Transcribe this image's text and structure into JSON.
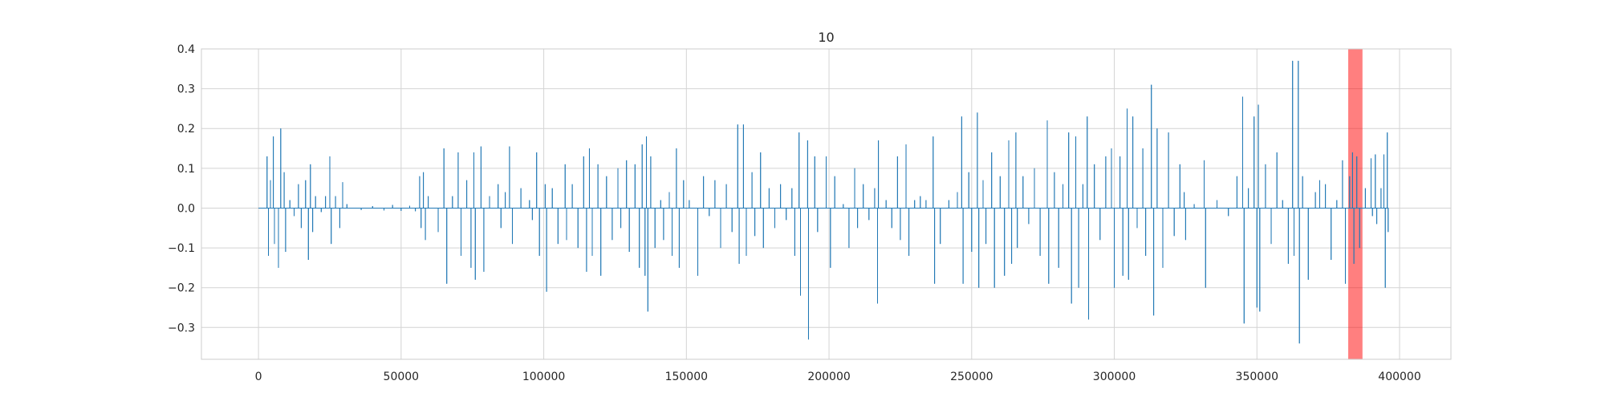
{
  "chart_data": {
    "type": "line",
    "title": "10",
    "xlabel": "",
    "ylabel": "",
    "xlim": [
      -20000,
      418000
    ],
    "ylim": [
      -0.38,
      0.4
    ],
    "x_ticks": [
      0,
      50000,
      100000,
      150000,
      200000,
      250000,
      300000,
      350000,
      400000
    ],
    "x_tick_labels": [
      "0",
      "50000",
      "100000",
      "150000",
      "200000",
      "250000",
      "300000",
      "350000",
      "400000"
    ],
    "y_ticks": [
      0.4,
      0.3,
      0.2,
      0.1,
      0.0,
      -0.1,
      -0.2,
      -0.3
    ],
    "y_tick_labels": [
      "0.4",
      "0.3",
      "0.2",
      "0.1",
      "0.0",
      "−0.1",
      "−0.2",
      "−0.3"
    ],
    "grid": true,
    "x_range": [
      0,
      396000
    ],
    "signal_color": "#1f77b4",
    "highlight": {
      "x_start": 382000,
      "x_end": 387000,
      "color": "#ff0000",
      "opacity": 0.5
    },
    "spikes": [
      [
        3000,
        0.13
      ],
      [
        3500,
        -0.12
      ],
      [
        4200,
        0.07
      ],
      [
        5200,
        0.18
      ],
      [
        5600,
        -0.09
      ],
      [
        7000,
        -0.15
      ],
      [
        7800,
        0.2
      ],
      [
        9000,
        0.09
      ],
      [
        9500,
        -0.11
      ],
      [
        11000,
        0.02
      ],
      [
        12500,
        -0.02
      ],
      [
        14000,
        0.06
      ],
      [
        15000,
        -0.05
      ],
      [
        16500,
        0.07
      ],
      [
        17500,
        -0.13
      ],
      [
        18200,
        0.11
      ],
      [
        19000,
        -0.06
      ],
      [
        20000,
        0.03
      ],
      [
        22000,
        -0.01
      ],
      [
        23500,
        0.03
      ],
      [
        25000,
        0.13
      ],
      [
        25500,
        -0.09
      ],
      [
        27000,
        0.03
      ],
      [
        28500,
        -0.05
      ],
      [
        29500,
        0.065
      ],
      [
        31000,
        0.01
      ],
      [
        36000,
        -0.005
      ],
      [
        40000,
        0.005
      ],
      [
        44000,
        -0.006
      ],
      [
        47000,
        0.008
      ],
      [
        50000,
        -0.007
      ],
      [
        53000,
        0.006
      ],
      [
        55000,
        -0.008
      ],
      [
        56500,
        0.08
      ],
      [
        57000,
        -0.05
      ],
      [
        57800,
        0.09
      ],
      [
        58500,
        -0.08
      ],
      [
        59500,
        0.03
      ],
      [
        63000,
        -0.06
      ],
      [
        65000,
        0.15
      ],
      [
        66000,
        -0.19
      ],
      [
        68000,
        0.03
      ],
      [
        70000,
        0.14
      ],
      [
        71000,
        -0.12
      ],
      [
        73000,
        0.07
      ],
      [
        74500,
        -0.15
      ],
      [
        75500,
        0.14
      ],
      [
        76000,
        -0.18
      ],
      [
        78000,
        0.155
      ],
      [
        79000,
        -0.16
      ],
      [
        81000,
        0.03
      ],
      [
        84000,
        0.06
      ],
      [
        85000,
        -0.05
      ],
      [
        86500,
        0.04
      ],
      [
        88000,
        0.155
      ],
      [
        89000,
        -0.09
      ],
      [
        92000,
        0.05
      ],
      [
        95000,
        0.02
      ],
      [
        96000,
        -0.03
      ],
      [
        97500,
        0.14
      ],
      [
        98500,
        -0.12
      ],
      [
        100500,
        0.06
      ],
      [
        101000,
        -0.21
      ],
      [
        103000,
        0.05
      ],
      [
        105000,
        -0.09
      ],
      [
        107500,
        0.11
      ],
      [
        108000,
        -0.08
      ],
      [
        110000,
        0.06
      ],
      [
        112000,
        -0.1
      ],
      [
        114000,
        0.13
      ],
      [
        115000,
        -0.16
      ],
      [
        116000,
        0.15
      ],
      [
        117000,
        -0.12
      ],
      [
        119000,
        0.11
      ],
      [
        120000,
        -0.17
      ],
      [
        122000,
        0.08
      ],
      [
        124000,
        -0.08
      ],
      [
        126000,
        0.1
      ],
      [
        127000,
        -0.05
      ],
      [
        129000,
        0.12
      ],
      [
        130000,
        -0.11
      ],
      [
        132000,
        0.11
      ],
      [
        133500,
        -0.15
      ],
      [
        134500,
        0.16
      ],
      [
        135500,
        -0.17
      ],
      [
        136000,
        0.18
      ],
      [
        136500,
        -0.26
      ],
      [
        137500,
        0.13
      ],
      [
        139000,
        -0.1
      ],
      [
        141000,
        0.02
      ],
      [
        142000,
        -0.08
      ],
      [
        144000,
        0.04
      ],
      [
        145000,
        -0.12
      ],
      [
        146500,
        0.15
      ],
      [
        147500,
        -0.15
      ],
      [
        149000,
        0.07
      ],
      [
        151000,
        0.02
      ],
      [
        154000,
        -0.17
      ],
      [
        156000,
        0.08
      ],
      [
        158000,
        -0.02
      ],
      [
        160000,
        0.07
      ],
      [
        162000,
        -0.1
      ],
      [
        164000,
        0.06
      ],
      [
        166000,
        -0.06
      ],
      [
        168000,
        0.21
      ],
      [
        168500,
        -0.14
      ],
      [
        170000,
        0.21
      ],
      [
        171000,
        -0.12
      ],
      [
        173000,
        0.09
      ],
      [
        174000,
        -0.07
      ],
      [
        176000,
        0.14
      ],
      [
        177000,
        -0.1
      ],
      [
        179000,
        0.05
      ],
      [
        181000,
        -0.05
      ],
      [
        183000,
        0.06
      ],
      [
        185000,
        -0.03
      ],
      [
        187000,
        0.05
      ],
      [
        188000,
        -0.12
      ],
      [
        189500,
        0.19
      ],
      [
        190000,
        -0.22
      ],
      [
        192500,
        0.17
      ],
      [
        192800,
        -0.33
      ],
      [
        195000,
        0.13
      ],
      [
        196000,
        -0.06
      ],
      [
        199000,
        0.13
      ],
      [
        200500,
        -0.15
      ],
      [
        202000,
        0.08
      ],
      [
        205000,
        0.01
      ],
      [
        207000,
        -0.1
      ],
      [
        209000,
        0.1
      ],
      [
        210000,
        -0.05
      ],
      [
        212000,
        0.06
      ],
      [
        214000,
        -0.03
      ],
      [
        216000,
        0.05
      ],
      [
        217000,
        -0.24
      ],
      [
        217300,
        0.17
      ],
      [
        220000,
        0.02
      ],
      [
        222000,
        -0.05
      ],
      [
        224000,
        0.13
      ],
      [
        225000,
        -0.08
      ],
      [
        227000,
        0.16
      ],
      [
        228000,
        -0.12
      ],
      [
        230000,
        0.02
      ],
      [
        232000,
        0.03
      ],
      [
        234000,
        0.02
      ],
      [
        236500,
        0.18
      ],
      [
        237000,
        -0.19
      ],
      [
        239000,
        -0.09
      ],
      [
        242000,
        0.02
      ],
      [
        245000,
        0.04
      ],
      [
        246500,
        0.23
      ],
      [
        247000,
        -0.19
      ],
      [
        249000,
        0.09
      ],
      [
        250000,
        -0.11
      ],
      [
        252000,
        0.24
      ],
      [
        252500,
        -0.2
      ],
      [
        254000,
        0.07
      ],
      [
        255000,
        -0.09
      ],
      [
        257000,
        0.14
      ],
      [
        258000,
        -0.2
      ],
      [
        260000,
        0.08
      ],
      [
        261500,
        -0.17
      ],
      [
        263000,
        0.17
      ],
      [
        264000,
        -0.14
      ],
      [
        265500,
        0.19
      ],
      [
        266000,
        -0.1
      ],
      [
        268000,
        0.08
      ],
      [
        270000,
        -0.04
      ],
      [
        272000,
        0.1
      ],
      [
        274000,
        -0.12
      ],
      [
        276500,
        0.22
      ],
      [
        277000,
        -0.19
      ],
      [
        279000,
        0.09
      ],
      [
        280500,
        -0.15
      ],
      [
        282000,
        0.06
      ],
      [
        284000,
        0.19
      ],
      [
        285000,
        -0.24
      ],
      [
        286500,
        0.18
      ],
      [
        287500,
        -0.2
      ],
      [
        289000,
        0.06
      ],
      [
        290500,
        0.23
      ],
      [
        291000,
        -0.28
      ],
      [
        293000,
        0.11
      ],
      [
        295000,
        -0.08
      ],
      [
        297000,
        0.13
      ],
      [
        299000,
        0.15
      ],
      [
        300000,
        -0.2
      ],
      [
        302000,
        0.13
      ],
      [
        303000,
        -0.17
      ],
      [
        304500,
        0.25
      ],
      [
        305000,
        -0.18
      ],
      [
        306500,
        0.23
      ],
      [
        308000,
        -0.05
      ],
      [
        310000,
        0.15
      ],
      [
        311000,
        -0.12
      ],
      [
        313000,
        0.31
      ],
      [
        313800,
        -0.27
      ],
      [
        315000,
        0.2
      ],
      [
        317000,
        -0.15
      ],
      [
        319000,
        0.19
      ],
      [
        321000,
        -0.07
      ],
      [
        323000,
        0.11
      ],
      [
        324500,
        0.04
      ],
      [
        325000,
        -0.08
      ],
      [
        328000,
        0.01
      ],
      [
        331500,
        0.12
      ],
      [
        332000,
        -0.2
      ],
      [
        336000,
        0.02
      ],
      [
        340000,
        -0.02
      ],
      [
        343000,
        0.08
      ],
      [
        345000,
        0.28
      ],
      [
        345500,
        -0.29
      ],
      [
        347000,
        0.05
      ],
      [
        349000,
        0.23
      ],
      [
        350000,
        -0.25
      ],
      [
        350500,
        0.26
      ],
      [
        351000,
        -0.26
      ],
      [
        353000,
        0.11
      ],
      [
        355000,
        -0.09
      ],
      [
        357000,
        0.14
      ],
      [
        359000,
        0.02
      ],
      [
        361000,
        -0.14
      ],
      [
        362500,
        0.37
      ],
      [
        363000,
        -0.12
      ],
      [
        364500,
        0.37
      ],
      [
        364900,
        -0.34
      ],
      [
        366000,
        0.08
      ],
      [
        368000,
        -0.18
      ],
      [
        370500,
        0.04
      ],
      [
        372000,
        0.07
      ],
      [
        374000,
        0.06
      ],
      [
        376000,
        -0.13
      ],
      [
        378000,
        0.02
      ],
      [
        380000,
        0.12
      ],
      [
        381000,
        -0.19
      ],
      [
        382500,
        0.08
      ],
      [
        383500,
        0.14
      ],
      [
        384000,
        -0.14
      ],
      [
        385000,
        0.13
      ],
      [
        386000,
        -0.1
      ],
      [
        388000,
        0.05
      ],
      [
        390000,
        0.125
      ],
      [
        390500,
        -0.02
      ],
      [
        391500,
        0.135
      ],
      [
        392000,
        -0.04
      ],
      [
        393500,
        0.05
      ],
      [
        394500,
        0.135
      ],
      [
        395000,
        -0.2
      ],
      [
        395700,
        0.19
      ],
      [
        396000,
        -0.06
      ]
    ]
  }
}
